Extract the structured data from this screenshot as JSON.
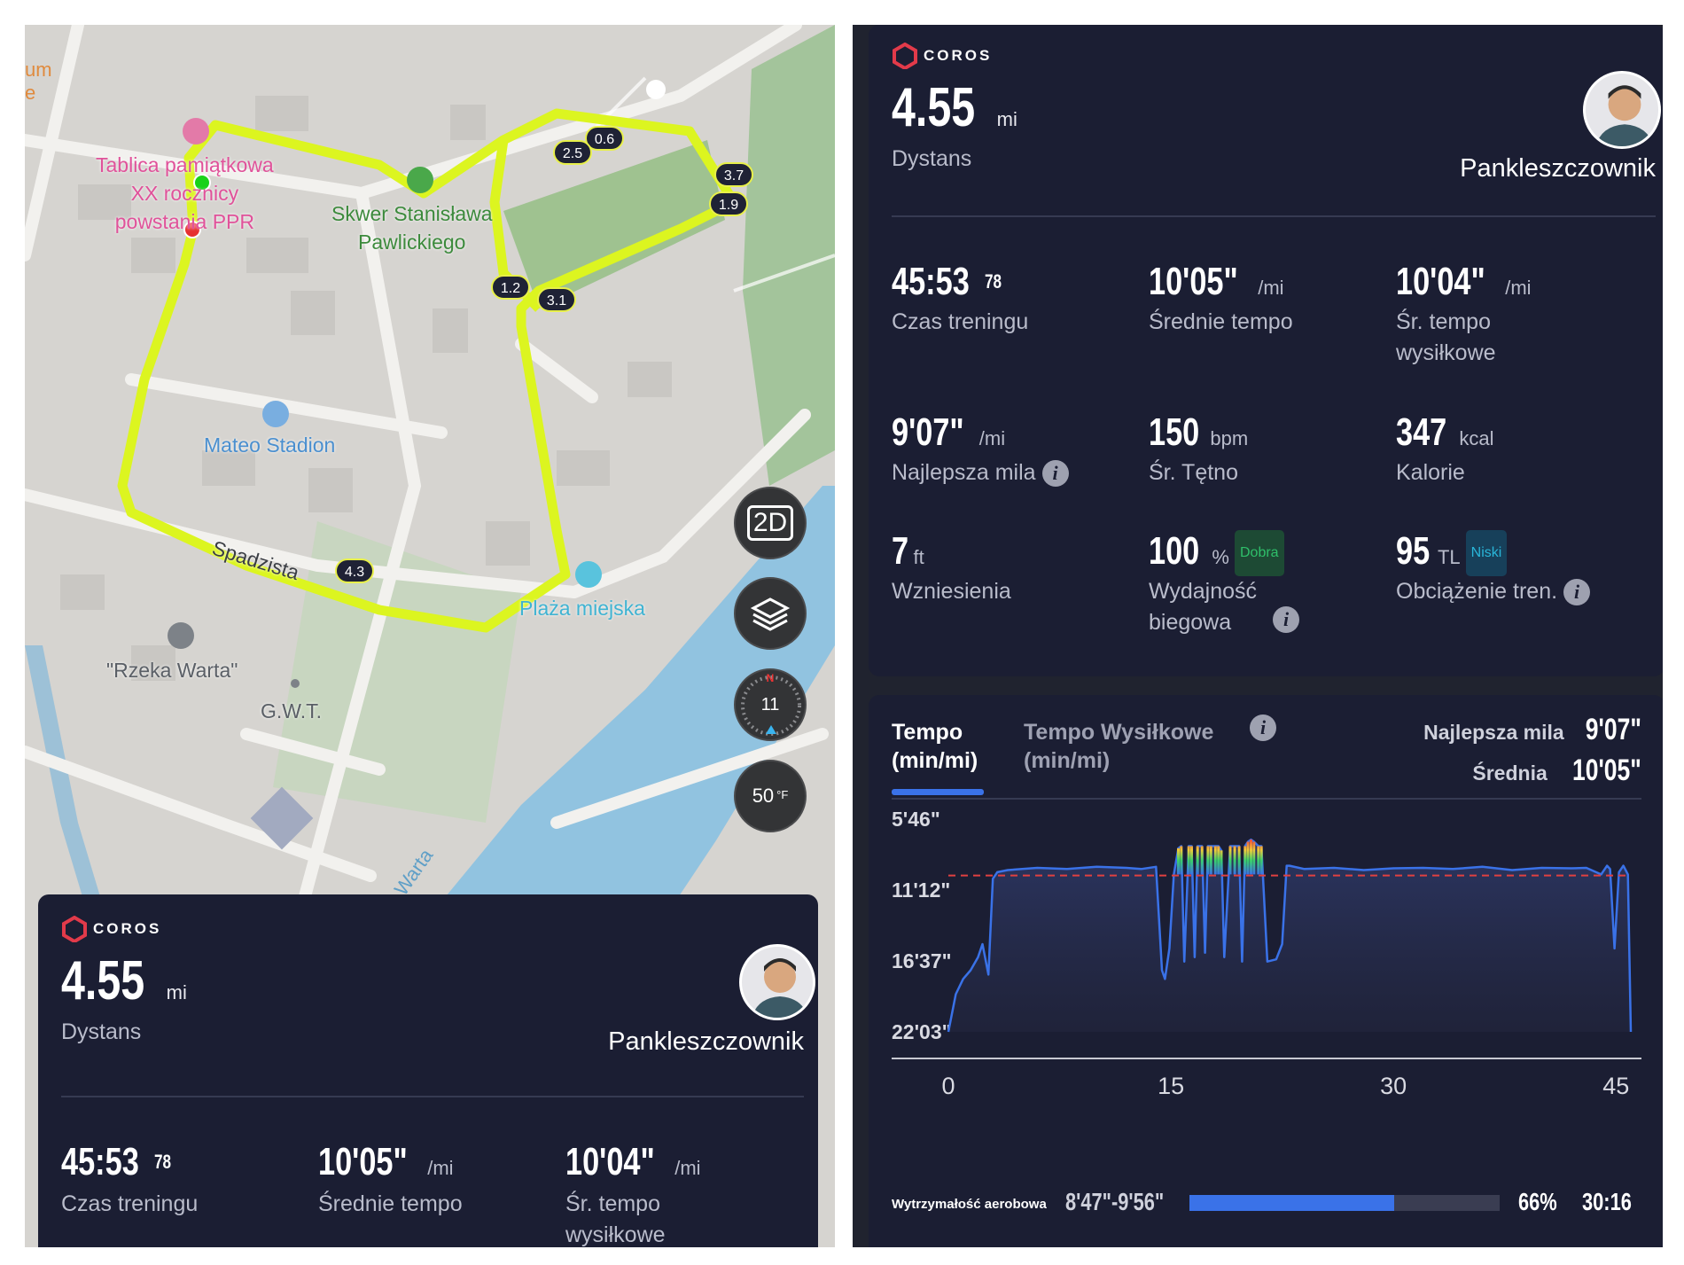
{
  "map": {
    "places": [
      {
        "name": "Tablica pamiątkowa\nXX rocznicy\npowstania PPR",
        "color": "#e0529a"
      },
      {
        "name": "Skwer Stanisława\nPawlickiego",
        "color": "#3c8a3c"
      },
      {
        "name": "Mateo Stadion",
        "color": "#4a8fcf"
      },
      {
        "name": "Plaża miejska",
        "color": "#3fb3d2"
      },
      {
        "name": "\"Rzeka Warta\"",
        "color": "#5a5f66"
      },
      {
        "name": "G.W.T.",
        "color": "#5a5f66"
      }
    ],
    "street": "Spadzista",
    "river": "Warta",
    "edge_text": "um\ne",
    "km_markers": [
      "0.6",
      "2.5",
      "3.7",
      "1.9",
      "1.2",
      "3.1",
      "4.3"
    ],
    "controls": {
      "view_mode": "2D",
      "compass_value": "11",
      "compass_n": "N",
      "temperature": "50",
      "temp_unit": "°F"
    }
  },
  "summary": {
    "brand": "COROS",
    "distance": "4.55",
    "distance_unit": "mi",
    "distance_label": "Dystans",
    "username": "Pankleszczownik",
    "stats": [
      {
        "value": "45:53",
        "sup": "78",
        "unit": "",
        "label": "Czas treningu"
      },
      {
        "value": "10'05\"",
        "unit": "/mi",
        "label": "Średnie tempo"
      },
      {
        "value": "10'04\"",
        "unit": "/mi",
        "label": "Śr. tempo\nwysiłkowe"
      },
      {
        "value": "9'07\"",
        "unit": "/mi",
        "label": "Najlepsza mila"
      },
      {
        "value": "150",
        "unit": "bpm",
        "label": "Śr. Tętno"
      },
      {
        "value": "347",
        "unit": "kcal",
        "label": "Kalorie"
      },
      {
        "value": "7",
        "unit": "ft",
        "label": "Wzniesienia"
      },
      {
        "value": "100",
        "unit": "%",
        "badge": "Dobra",
        "label": "Wydajność\nbiegowa"
      },
      {
        "value": "95",
        "unit": "TL",
        "badge": "Niski",
        "label": "Obciążenie tren."
      }
    ]
  },
  "chart_panel": {
    "tab_active": "Tempo\n(min/mi)",
    "tab_inactive": "Tempo Wysiłkowe\n(min/mi)",
    "best_mile_label": "Najlepsza mila",
    "best_mile_value": "9'07\"",
    "average_label": "Średnia",
    "average_value": "10'05\"",
    "zone": {
      "label": "Wytrzymałość aerobowa",
      "range": "8'47\"-9'56\"",
      "percent_text": "66%",
      "percent": 0.66,
      "time": "30:16"
    }
  },
  "chart_data": {
    "type": "line",
    "title": "",
    "xlabel": "",
    "ylabel": "",
    "x_ticks": [
      "0",
      "15",
      "30",
      "45"
    ],
    "y_ticks": [
      "5'46\"",
      "11'12\"",
      "16'37\"",
      "22'03\""
    ],
    "xlim": [
      0,
      46
    ],
    "ylim_seconds": [
      346,
      1323
    ],
    "average_line_seconds": 605,
    "series": [
      {
        "x": [
          0,
          0.5,
          1,
          1.5,
          2,
          2.3,
          2.7,
          3,
          3.3,
          4,
          6,
          8,
          10,
          12,
          13,
          14,
          14.4,
          14.6,
          14.9,
          15.2,
          15.5,
          15.7,
          15.9,
          16.2,
          16.4,
          16.6,
          16.8,
          17.1,
          17.3,
          17.5,
          17.7,
          18.0,
          18.2,
          18.4,
          18.6,
          19.0,
          19.3,
          19.6,
          19.8,
          20.0,
          20.2,
          20.4,
          20.6,
          20.9,
          21.1,
          21.5,
          22.1,
          22.5,
          22.8,
          23,
          24,
          26,
          28,
          30,
          32,
          34,
          36,
          38,
          40,
          42,
          43,
          44,
          44.4,
          44.6,
          44.9,
          45.2,
          45.5,
          45.8,
          46
        ],
        "y": [
          1323,
          1150,
          1080,
          1040,
          980,
          920,
          1060,
          620,
          590,
          580,
          570,
          575,
          565,
          570,
          575,
          565,
          1040,
          1080,
          940,
          600,
          480,
          470,
          1000,
          470,
          470,
          980,
          470,
          470,
          960,
          470,
          470,
          470,
          470,
          490,
          980,
          470,
          470,
          470,
          1000,
          470,
          450,
          440,
          450,
          470,
          470,
          1000,
          990,
          920,
          560,
          560,
          575,
          570,
          580,
          572,
          570,
          575,
          565,
          580,
          570,
          572,
          570,
          600,
          560,
          575,
          940,
          590,
          560,
          600,
          1323
        ]
      }
    ]
  },
  "colors": {
    "card_bg": "#1b1e33",
    "accent_blue": "#3a72e8",
    "route": "#dcf520",
    "avg_line": "#e04040",
    "badge_green": "#2fbf6a",
    "badge_cyan": "#29b6d9"
  }
}
